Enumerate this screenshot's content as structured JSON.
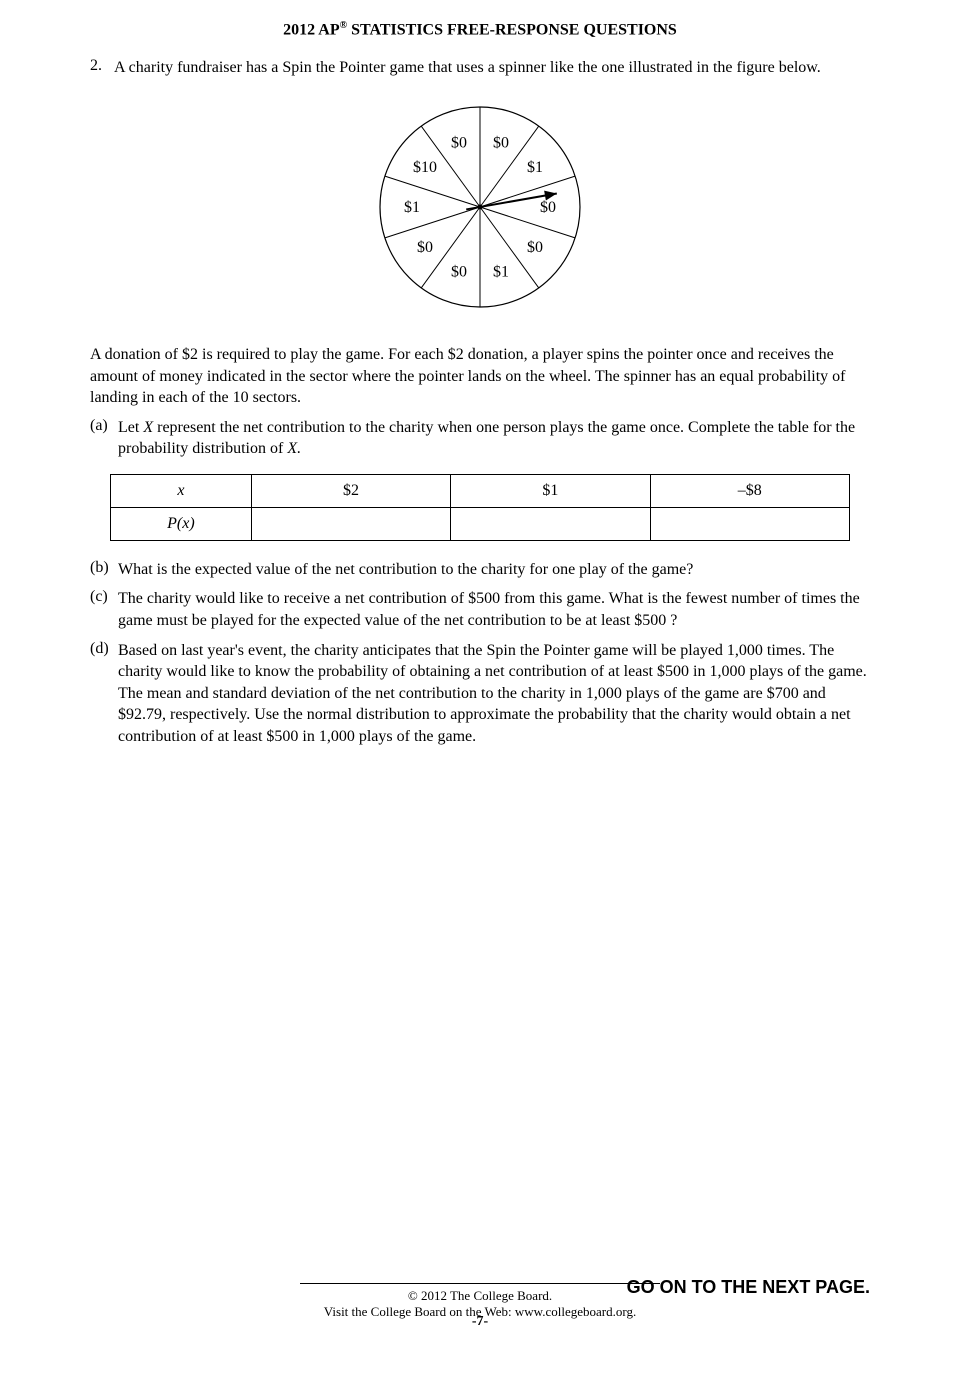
{
  "header": "2012 AP® STATISTICS FREE-RESPONSE QUESTIONS",
  "question_number": "2.",
  "intro": "A charity fundraiser has a Spin the Pointer game that uses a spinner like the one illustrated in the figure below.",
  "spinner": {
    "type": "pie-spinner",
    "radius": 100,
    "sectors": 10,
    "labels": [
      "$0",
      "$1",
      "$0",
      "$0",
      "$1",
      "$0",
      "$0",
      "$1",
      "$10",
      "$0"
    ],
    "pointer_angle_deg": 80,
    "stroke": "#000000",
    "fill": "#ffffff",
    "label_fontsize": 16
  },
  "para1": "A donation of $2 is required to play the game. For each $2 donation, a player spins the pointer once and receives the amount of money indicated in the sector where the pointer lands on the wheel. The spinner has an equal probability of landing in each of the 10 sectors.",
  "part_a": {
    "label": "(a)",
    "text_before_X": "Let ",
    "X": "X",
    "text_mid": " represent the net contribution to the charity when one person plays the game once. Complete the table for the probability distribution of ",
    "X2": "X.",
    "table": {
      "row1_label": "x",
      "row2_label": "P(x)",
      "col_values": [
        "$2",
        "$1",
        "–$8"
      ]
    }
  },
  "part_b": {
    "label": "(b)",
    "text": "What is the expected value of the net contribution to the charity for one play of the game?"
  },
  "part_c": {
    "label": "(c)",
    "text": "The charity would like to receive a net contribution of $500 from this game. What is the fewest number of times the game must be played for the expected value of the net contribution to be at least $500 ?"
  },
  "part_d": {
    "label": "(d)",
    "text": "Based on last year's event, the charity anticipates that the Spin the Pointer game will be played 1,000 times. The charity would like to know the probability of obtaining a net contribution of at least $500 in 1,000 plays of the game. The mean and standard deviation of the net contribution to the charity in 1,000 plays of the game are $700 and $92.79, respectively. Use the normal distribution to approximate the probability that the charity would obtain a net contribution of at least $500 in 1,000 plays of the game."
  },
  "footer": {
    "copyright": "© 2012 The College Board.",
    "visit": "Visit the College Board on the Web: www.collegeboard.org.",
    "go_on": "GO ON TO THE NEXT PAGE.",
    "page": "-7-"
  }
}
